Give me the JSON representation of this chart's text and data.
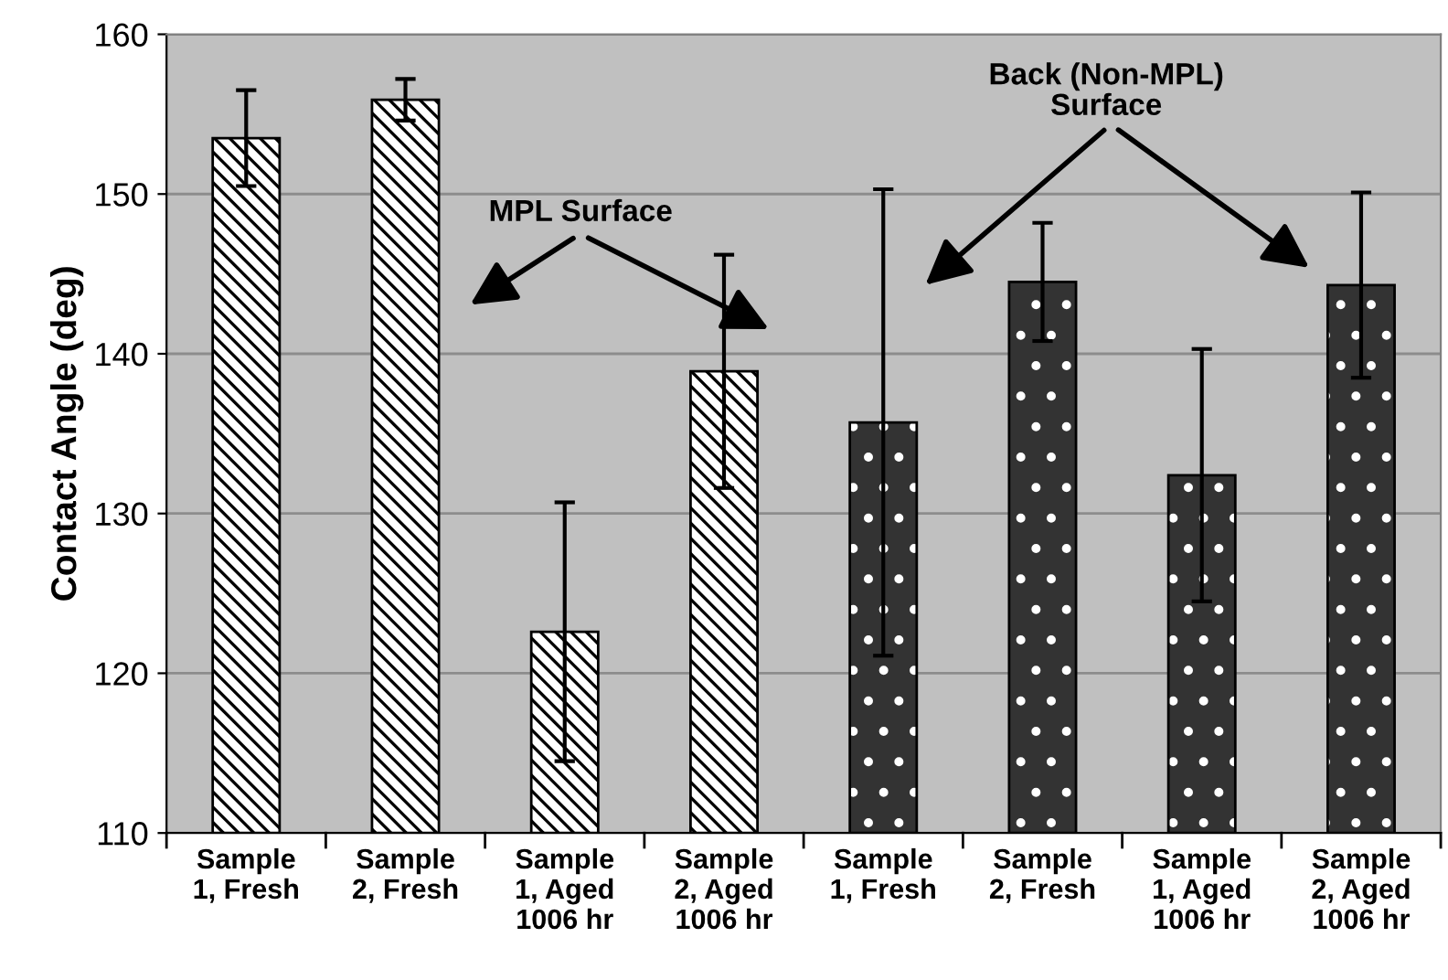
{
  "chart_data": {
    "type": "bar",
    "categories": [
      "Sample\n1, Fresh",
      "Sample\n2, Fresh",
      "Sample\n1, Aged\n1006 hr",
      "Sample\n2, Aged\n1006 hr",
      "Sample\n1, Fresh",
      "Sample\n2, Fresh",
      "Sample\n1, Aged\n1006 hr",
      "Sample\n2, Aged\n1006 hr"
    ],
    "values": [
      153.5,
      155.9,
      122.6,
      138.9,
      135.7,
      144.5,
      132.4,
      144.3
    ],
    "errors": [
      3.0,
      1.3,
      8.1,
      7.3,
      14.6,
      3.7,
      7.9,
      5.8
    ],
    "colors": [
      "#ffffff",
      "#ffffff",
      "#ffffff",
      "#ffffff",
      "#333333",
      "#333333",
      "#333333",
      "#333333"
    ],
    "ylabel": "Contact Angle (deg)",
    "ylim": [
      110,
      160
    ],
    "yticks": [
      110,
      120,
      130,
      140,
      150,
      160
    ],
    "grid": "y",
    "annotations": [
      "MPL Surface",
      "Back (Non-MPL)\nSurface"
    ]
  }
}
